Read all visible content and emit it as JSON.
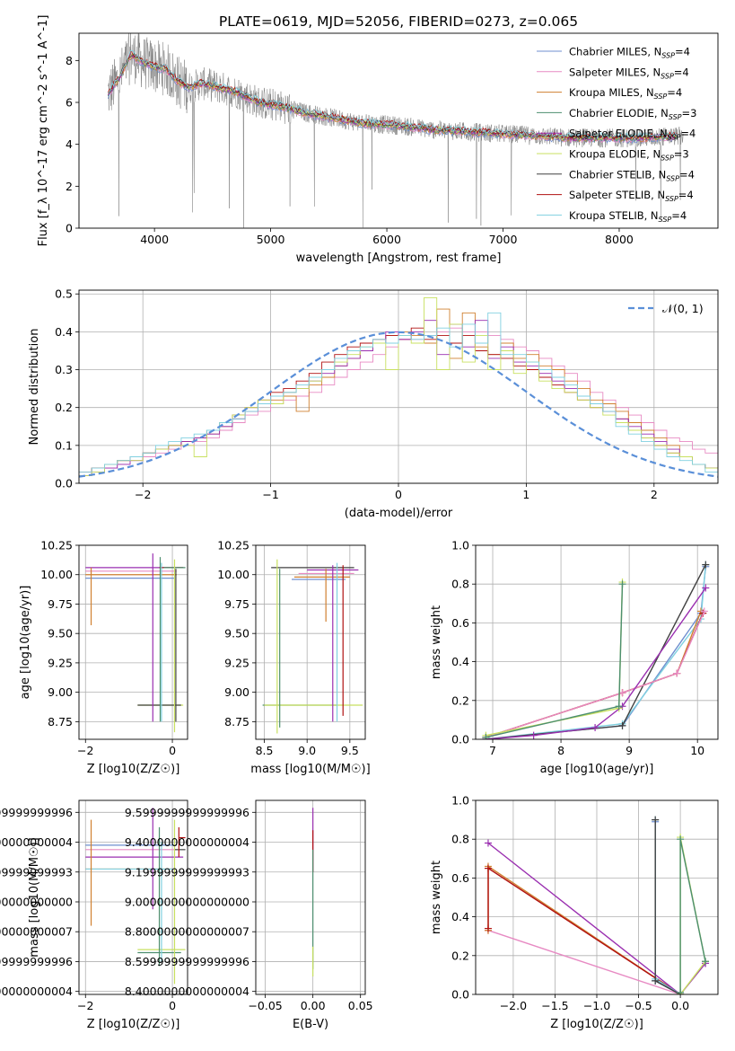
{
  "figure": {
    "title": "PLATE=0619, MJD=52056, FIBERID=0273, z=0.065"
  },
  "models": [
    {
      "name": "Chabrier MILES",
      "nssp": "4",
      "color": "#6f8fcf"
    },
    {
      "name": "Salpeter MILES",
      "nssp": "4",
      "color": "#e78ac3"
    },
    {
      "name": "Kroupa MILES",
      "nssp": "4",
      "color": "#d08030"
    },
    {
      "name": "Chabrier ELODIE",
      "nssp": "3",
      "color": "#4d8f6f"
    },
    {
      "name": "Salpeter ELODIE",
      "nssp": "4",
      "color": "#9a2fb0"
    },
    {
      "name": "Kroupa ELODIE",
      "nssp": "3",
      "color": "#c8e060"
    },
    {
      "name": "Chabrier STELIB",
      "nssp": "4",
      "color": "#404040"
    },
    {
      "name": "Salpeter STELIB",
      "nssp": "4",
      "color": "#b01010"
    },
    {
      "name": "Kroupa STELIB",
      "nssp": "4",
      "color": "#80d0e0"
    }
  ],
  "chart_data": [
    {
      "id": "spectrum",
      "type": "line",
      "xlabel": "wavelength [Angstrom, rest frame]",
      "ylabel": "Flux [f_λ 10^-17 erg cm^-2 s^-1 A^-1]",
      "xlim": [
        3350,
        8850
      ],
      "ylim": [
        0,
        9.3
      ],
      "xticks": [
        4000,
        5000,
        6000,
        7000,
        8000
      ],
      "yticks": [
        0,
        2,
        4,
        6,
        8
      ],
      "data_color": "#808080",
      "model_curve": {
        "x": [
          3600,
          3700,
          3800,
          3900,
          4000,
          4100,
          4200,
          4300,
          4400,
          4500,
          4700,
          4900,
          5100,
          5300,
          5500,
          5800,
          6100,
          6400,
          6700,
          7000,
          7300,
          7600,
          7900,
          8200,
          8500
        ],
        "y": [
          6.4,
          7.2,
          8.3,
          7.9,
          7.7,
          7.6,
          7.0,
          6.7,
          6.9,
          6.8,
          6.5,
          6.0,
          5.8,
          5.5,
          5.3,
          5.0,
          4.9,
          4.7,
          4.6,
          4.5,
          4.4,
          4.3,
          4.3,
          4.3,
          4.4
        ]
      }
    },
    {
      "id": "residuals",
      "type": "line",
      "xlabel": "(data-model)/error",
      "ylabel": "Normed distribution",
      "xlim": [
        -2.5,
        2.5
      ],
      "ylim": [
        0,
        0.51
      ],
      "xticks": [
        -2,
        -1,
        0,
        1,
        2
      ],
      "yticks": [
        0.0,
        0.1,
        0.2,
        0.3,
        0.4,
        0.5
      ],
      "legend": "𝒩(0, 1)",
      "legend_loc": "upper right",
      "gaussian": {
        "mean": 0,
        "sigma": 1,
        "color": "#5a8fd8"
      },
      "hist_bins": {
        "start": -2.5,
        "width": 0.1,
        "count": 50
      },
      "hist_series": [
        [
          0.03,
          0.03,
          0.04,
          0.05,
          0.06,
          0.07,
          0.08,
          0.09,
          0.1,
          0.11,
          0.12,
          0.14,
          0.16,
          0.18,
          0.19,
          0.21,
          0.22,
          0.23,
          0.24,
          0.26,
          0.28,
          0.3,
          0.32,
          0.34,
          0.36,
          0.38,
          0.38,
          0.39,
          0.4,
          0.41,
          0.4,
          0.4,
          0.39,
          0.38,
          0.36,
          0.35,
          0.33,
          0.31,
          0.29,
          0.27,
          0.24,
          0.22,
          0.2,
          0.18,
          0.16,
          0.14,
          0.12,
          0.11,
          0.09,
          0.08
        ],
        [
          0.02,
          0.04,
          0.05,
          0.06,
          0.07,
          0.08,
          0.09,
          0.1,
          0.11,
          0.12,
          0.13,
          0.15,
          0.17,
          0.19,
          0.21,
          0.22,
          0.23,
          0.19,
          0.26,
          0.28,
          0.31,
          0.33,
          0.35,
          0.37,
          0.39,
          0.4,
          0.39,
          0.37,
          0.46,
          0.33,
          0.45,
          0.36,
          0.34,
          0.37,
          0.33,
          0.34,
          0.31,
          0.3,
          0.27,
          0.25,
          0.22,
          0.21,
          0.19,
          0.16,
          0.14,
          0.12,
          0.1,
          0.07,
          0.05,
          0.04
        ],
        [
          0.03,
          0.04,
          0.05,
          0.06,
          0.07,
          0.08,
          0.09,
          0.1,
          0.11,
          0.12,
          0.14,
          0.16,
          0.18,
          0.2,
          0.22,
          0.24,
          0.25,
          0.27,
          0.29,
          0.32,
          0.34,
          0.36,
          0.37,
          0.38,
          0.39,
          0.38,
          0.41,
          0.38,
          0.39,
          0.37,
          0.39,
          0.35,
          0.34,
          0.33,
          0.31,
          0.3,
          0.28,
          0.26,
          0.24,
          0.22,
          0.2,
          0.19,
          0.17,
          0.14,
          0.12,
          0.1,
          0.08,
          0.07,
          0.05,
          0.04
        ],
        [
          0.02,
          0.03,
          0.04,
          0.05,
          0.06,
          0.08,
          0.09,
          0.1,
          0.11,
          0.12,
          0.13,
          0.15,
          0.17,
          0.19,
          0.21,
          0.23,
          0.24,
          0.25,
          0.27,
          0.29,
          0.31,
          0.33,
          0.35,
          0.37,
          0.4,
          0.38,
          0.4,
          0.43,
          0.34,
          0.42,
          0.36,
          0.43,
          0.33,
          0.36,
          0.32,
          0.31,
          0.29,
          0.27,
          0.25,
          0.23,
          0.21,
          0.19,
          0.17,
          0.15,
          0.13,
          0.11,
          0.09,
          0.07,
          0.05,
          0.04
        ],
        [
          0.02,
          0.03,
          0.05,
          0.06,
          0.06,
          0.08,
          0.09,
          0.1,
          0.1,
          0.07,
          0.14,
          0.16,
          0.18,
          0.2,
          0.22,
          0.21,
          0.24,
          0.25,
          0.27,
          0.3,
          0.32,
          0.34,
          0.36,
          0.37,
          0.3,
          0.39,
          0.37,
          0.49,
          0.3,
          0.42,
          0.32,
          0.39,
          0.3,
          0.35,
          0.29,
          0.32,
          0.27,
          0.25,
          0.24,
          0.22,
          0.2,
          0.18,
          0.16,
          0.14,
          0.12,
          0.1,
          0.08,
          0.07,
          0.05,
          0.04
        ],
        [
          0.03,
          0.04,
          0.05,
          0.06,
          0.07,
          0.08,
          0.1,
          0.11,
          0.12,
          0.13,
          0.14,
          0.16,
          0.17,
          0.19,
          0.21,
          0.23,
          0.24,
          0.26,
          0.28,
          0.3,
          0.33,
          0.35,
          0.36,
          0.38,
          0.37,
          0.39,
          0.38,
          0.39,
          0.41,
          0.36,
          0.42,
          0.37,
          0.45,
          0.34,
          0.34,
          0.32,
          0.3,
          0.28,
          0.26,
          0.23,
          0.21,
          0.19,
          0.15,
          0.13,
          0.11,
          0.09,
          0.07,
          0.06,
          0.05,
          0.03
        ]
      ]
    },
    {
      "id": "age-vs-z",
      "type": "scatter",
      "xlabel": "Z [log10(Z/Z☉)]",
      "ylabel": "age [log10(age/yr)]",
      "xlim": [
        -2.15,
        0.35
      ],
      "ylim": [
        8.6,
        10.25
      ],
      "xticks": [
        -2,
        0
      ],
      "yticks": [
        8.75,
        9.0,
        9.25,
        9.5,
        9.75,
        10.0,
        10.25
      ],
      "hlines": [
        {
          "y": 10.06,
          "x0": -2.0,
          "x1": 0.25,
          "color": 4
        },
        {
          "y": 10.03,
          "x0": -2.0,
          "x1": 0.1,
          "color": 1
        },
        {
          "y": 10.0,
          "x0": -2.0,
          "x1": 0.1,
          "color": 2
        },
        {
          "y": 9.97,
          "x0": -2.0,
          "x1": 0.05,
          "color": 0
        },
        {
          "y": 10.06,
          "x0": -0.3,
          "x1": 0.25,
          "color": 7
        },
        {
          "y": 10.06,
          "x0": -0.2,
          "x1": 0.3,
          "color": 3
        },
        {
          "y": 8.89,
          "x0": -0.8,
          "x1": 0.25,
          "color": 5
        },
        {
          "y": 8.89,
          "x0": -0.8,
          "x1": 0.2,
          "color": 6
        }
      ],
      "vlines": [
        {
          "x": -1.87,
          "y0": 9.57,
          "y1": 10.06,
          "color": 2
        },
        {
          "x": -0.45,
          "y0": 8.75,
          "y1": 10.18,
          "color": 4
        },
        {
          "x": -0.28,
          "y0": 8.75,
          "y1": 10.15,
          "color": 3
        },
        {
          "x": -0.25,
          "y0": 8.75,
          "y1": 10.1,
          "color": 8
        },
        {
          "x": 0.05,
          "y0": 8.66,
          "y1": 10.13,
          "color": 5
        },
        {
          "x": 0.08,
          "y0": 8.75,
          "y1": 10.05,
          "color": 6
        }
      ]
    },
    {
      "id": "age-vs-mass",
      "type": "scatter",
      "xlabel": "mass [log10(M/M☉)]",
      "ylabel": "",
      "xlim": [
        8.4,
        9.68
      ],
      "ylim": [
        8.6,
        10.25
      ],
      "xticks": [
        8.5,
        9.0,
        9.5
      ],
      "yticks": [
        8.75,
        9.0,
        9.25,
        9.5,
        9.75,
        10.0,
        10.25
      ],
      "hlines": [
        {
          "y": 10.06,
          "x0": 8.58,
          "x1": 9.55,
          "color": 6
        },
        {
          "y": 10.04,
          "x0": 9.0,
          "x1": 9.6,
          "color": 4
        },
        {
          "y": 10.01,
          "x0": 8.9,
          "x1": 9.55,
          "color": 1
        },
        {
          "y": 9.98,
          "x0": 8.85,
          "x1": 9.5,
          "color": 2
        },
        {
          "y": 9.96,
          "x0": 8.82,
          "x1": 9.45,
          "color": 0
        },
        {
          "y": 8.89,
          "x0": 8.48,
          "x1": 9.35,
          "color": 3
        },
        {
          "y": 8.89,
          "x0": 8.5,
          "x1": 9.65,
          "color": 5
        }
      ],
      "vlines": [
        {
          "x": 8.65,
          "y0": 8.65,
          "y1": 10.13,
          "color": 5
        },
        {
          "x": 8.68,
          "y0": 8.7,
          "y1": 10.05,
          "color": 3
        },
        {
          "x": 9.22,
          "y0": 9.6,
          "y1": 10.05,
          "color": 2
        },
        {
          "x": 9.3,
          "y0": 8.75,
          "y1": 10.08,
          "color": 4
        },
        {
          "x": 9.35,
          "y0": 8.75,
          "y1": 10.1,
          "color": 8
        },
        {
          "x": 9.42,
          "y0": 8.8,
          "y1": 10.08,
          "color": 7
        }
      ]
    },
    {
      "id": "weight-vs-age",
      "type": "line",
      "xlabel": "age [log10(age/yr)]",
      "ylabel": "mass weight",
      "xlim": [
        6.75,
        10.3
      ],
      "ylim": [
        0,
        1.0
      ],
      "xticks": [
        7,
        8,
        9,
        10
      ],
      "yticks": [
        0.0,
        0.2,
        0.4,
        0.6,
        0.8,
        1.0
      ],
      "series": [
        {
          "color": 0,
          "x": [
            6.9,
            8.9,
            10.05,
            10.12
          ],
          "y": [
            0.0,
            0.07,
            0.65,
            0.89
          ]
        },
        {
          "color": 8,
          "x": [
            6.9,
            8.9,
            10.05,
            10.12
          ],
          "y": [
            0.0,
            0.08,
            0.62,
            0.9
          ]
        },
        {
          "color": 6,
          "x": [
            6.9,
            8.9,
            10.12
          ],
          "y": [
            0.0,
            0.07,
            0.9
          ]
        },
        {
          "color": 2,
          "x": [
            6.9,
            8.9,
            9.7,
            10.05
          ],
          "y": [
            0.01,
            0.24,
            0.34,
            0.66
          ]
        },
        {
          "color": 7,
          "x": [
            6.9,
            8.9,
            9.7,
            10.08
          ],
          "y": [
            0.01,
            0.24,
            0.34,
            0.65
          ]
        },
        {
          "color": 1,
          "x": [
            6.9,
            8.9,
            9.7,
            10.1
          ],
          "y": [
            0.01,
            0.24,
            0.34,
            0.66
          ]
        },
        {
          "color": 4,
          "x": [
            6.9,
            7.6,
            8.5,
            8.9,
            10.12
          ],
          "y": [
            0.0,
            0.02,
            0.06,
            0.17,
            0.78
          ]
        },
        {
          "color": 5,
          "x": [
            6.9,
            8.85,
            8.9
          ],
          "y": [
            0.02,
            0.16,
            0.81
          ]
        },
        {
          "color": 3,
          "x": [
            6.9,
            8.85,
            8.9
          ],
          "y": [
            0.01,
            0.17,
            0.8
          ]
        }
      ]
    },
    {
      "id": "mass-vs-z",
      "type": "scatter",
      "xlabel": "Z [log10(Z/Z☉)]",
      "ylabel": "mass [log10(M/M☉)]",
      "xlim": [
        -2.15,
        0.35
      ],
      "ylim": [
        8.38,
        9.68
      ],
      "xticks": [
        -2,
        0
      ],
      "yticks": [
        8.4,
        8.6,
        8.8,
        9.0,
        9.2,
        9.4,
        9.6
      ],
      "hlines": [
        {
          "y": 9.43,
          "x0": 0.15,
          "x1": 0.3,
          "color": 7
        },
        {
          "y": 9.38,
          "x0": -2.0,
          "x1": 0.1,
          "color": 0
        },
        {
          "y": 9.35,
          "x0": -2.0,
          "x1": 0.1,
          "color": 1
        },
        {
          "y": 9.35,
          "x0": 0.05,
          "x1": 0.3,
          "color": 6
        },
        {
          "y": 9.3,
          "x0": -2.0,
          "x1": 0.25,
          "color": 4
        },
        {
          "y": 9.22,
          "x0": -2.0,
          "x1": 0.0,
          "color": 2
        },
        {
          "y": 9.22,
          "x0": -2.0,
          "x1": 0.0,
          "color": 8
        },
        {
          "y": 8.68,
          "x0": -0.8,
          "x1": 0.3,
          "color": 5
        },
        {
          "y": 8.66,
          "x0": -0.8,
          "x1": 0.2,
          "color": 3
        }
      ],
      "vlines": [
        {
          "x": -1.87,
          "y0": 8.84,
          "y1": 9.55,
          "color": 2
        },
        {
          "x": -0.45,
          "y0": 8.95,
          "y1": 9.63,
          "color": 4
        },
        {
          "x": -0.3,
          "y0": 8.57,
          "y1": 9.5,
          "color": 3
        },
        {
          "x": -0.25,
          "y0": 8.6,
          "y1": 9.4,
          "color": 8
        },
        {
          "x": 0.05,
          "y0": 8.45,
          "y1": 9.55,
          "color": 5
        },
        {
          "x": 0.15,
          "y0": 9.3,
          "y1": 9.5,
          "color": 7
        }
      ]
    },
    {
      "id": "mass-vs-ebv",
      "type": "scatter",
      "xlabel": "E(B-V)",
      "ylabel": "",
      "xlim": [
        -0.06,
        0.055
      ],
      "ylim": [
        8.38,
        9.68
      ],
      "xticks": [
        -0.05,
        0.0,
        0.05
      ],
      "yticks": [
        8.4,
        8.6,
        8.8,
        9.0,
        9.2,
        9.4,
        9.6
      ],
      "vlines": [
        {
          "x": 0.0,
          "y0": 9.2,
          "y1": 9.63,
          "color": 4
        },
        {
          "x": 0.0,
          "y0": 9.2,
          "y1": 9.48,
          "color": 7
        },
        {
          "x": 0.0,
          "y0": 8.55,
          "y1": 9.35,
          "color": 3
        },
        {
          "x": 0.0,
          "y0": 8.5,
          "y1": 8.7,
          "color": 5
        }
      ]
    },
    {
      "id": "weight-vs-z",
      "type": "line",
      "xlabel": "Z [log10(Z/Z☉)]",
      "ylabel": "mass weight",
      "xlim": [
        -2.45,
        0.45
      ],
      "ylim": [
        0,
        1.0
      ],
      "xticks": [
        -2.0,
        -1.5,
        -1.0,
        -0.5,
        0.0
      ],
      "yticks": [
        0.0,
        0.2,
        0.4,
        0.6,
        0.8,
        1.0
      ],
      "series": [
        {
          "color": 1,
          "x": [
            -2.3,
            0.0
          ],
          "y": [
            0.33,
            0.0
          ]
        },
        {
          "color": 2,
          "x": [
            -2.3,
            -2.3,
            0.0
          ],
          "y": [
            0.33,
            0.66,
            0.0
          ]
        },
        {
          "color": 7,
          "x": [
            -2.3,
            -2.3,
            0.0
          ],
          "y": [
            0.34,
            0.65,
            0.0
          ]
        },
        {
          "color": 4,
          "x": [
            -2.3,
            0.0,
            0.3,
            0.3
          ],
          "y": [
            0.78,
            0.0,
            0.16,
            0.16
          ]
        },
        {
          "color": 0,
          "x": [
            -0.3,
            -0.3,
            0.0
          ],
          "y": [
            0.89,
            0.07,
            0.0
          ]
        },
        {
          "color": 8,
          "x": [
            -0.3,
            -0.3,
            0.0
          ],
          "y": [
            0.9,
            0.08,
            0.0
          ]
        },
        {
          "color": 6,
          "x": [
            -0.3,
            -0.3,
            0.0
          ],
          "y": [
            0.9,
            0.07,
            0.0
          ]
        },
        {
          "color": 5,
          "x": [
            0.0,
            0.0,
            0.3,
            0.0
          ],
          "y": [
            0.0,
            0.81,
            0.17,
            0.0
          ]
        },
        {
          "color": 3,
          "x": [
            0.0,
            0.0,
            0.3
          ],
          "y": [
            0.01,
            0.8,
            0.17
          ]
        }
      ]
    }
  ]
}
